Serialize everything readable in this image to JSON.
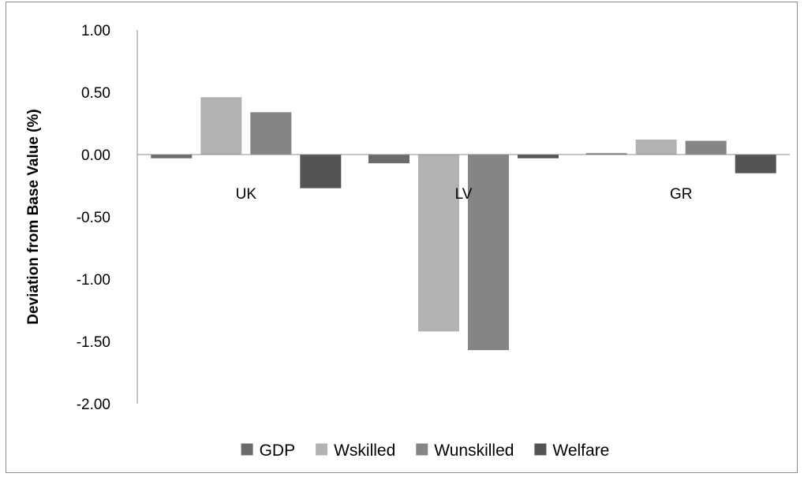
{
  "chart_data": {
    "type": "bar",
    "title": "",
    "xlabel": "",
    "ylabel": "Deviation from Base  Value (%)",
    "ylim": [
      -2.0,
      1.0
    ],
    "yticks": [
      "1.00",
      "0.50",
      "0.00",
      "-0.50",
      "-1.00",
      "-1.50",
      "-2.00"
    ],
    "ytick_values": [
      1.0,
      0.5,
      0.0,
      -0.5,
      -1.0,
      -1.5,
      -2.0
    ],
    "categories": [
      "UK",
      "LV",
      "GR"
    ],
    "series": [
      {
        "name": "GDP",
        "color": "#6b6b6b",
        "values": [
          -0.03,
          -0.07,
          0.01
        ]
      },
      {
        "name": "Wskilled",
        "color": "#b2b2b2",
        "values": [
          0.46,
          -1.42,
          0.12
        ]
      },
      {
        "name": "Wunskilled",
        "color": "#858585",
        "values": [
          0.34,
          -1.57,
          0.11
        ]
      },
      {
        "name": "Welfare",
        "color": "#545454",
        "values": [
          -0.27,
          -0.03,
          -0.15
        ]
      }
    ],
    "grid": false,
    "legend": "bottom"
  }
}
